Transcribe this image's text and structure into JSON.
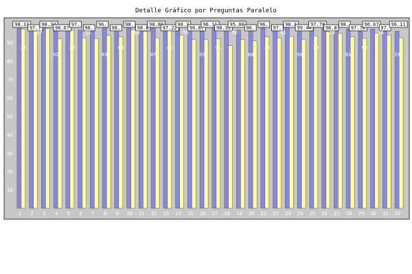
{
  "chart_data": {
    "type": "bar",
    "title": "Detalle Gráfico por Preguntas Paralelo",
    "categories": [
      "1",
      "2",
      "3",
      "4",
      "5",
      "6",
      "7",
      "8",
      "9",
      "10",
      "11",
      "12",
      "13",
      "14",
      "15",
      "16",
      "17",
      "18",
      "19",
      "20",
      "21",
      "22",
      "23",
      "24",
      "25",
      "26",
      "27",
      "28",
      "29",
      "30",
      "31",
      "32"
    ],
    "ylim": [
      0,
      100
    ],
    "yticks": [
      10,
      20,
      30,
      40,
      50,
      60,
      70,
      80,
      90
    ],
    "series": [
      {
        "color": "#8888e0",
        "values": [
          98.33,
          97.78,
          98.33,
          96.11,
          97.78,
          96.67,
          96.67,
          98.33,
          98.89,
          98.89,
          98.89,
          97.78,
          98.33,
          98.33,
          96.67,
          96.11,
          98.33,
          97.22,
          96.67,
          96.67,
          97.78,
          98.33,
          99.44,
          97.78,
          98.89,
          98.89,
          97.78,
          97.22,
          97.78,
          97.22,
          96.11,
          96.11
        ]
      },
      {
        "color": "#ffffa0",
        "values": [
          97.22,
          97.0,
          97.5,
          92.0,
          96.67,
          92.5,
          92.11,
          93.8,
          93.03,
          97.0,
          96.07,
          92.5,
          97.22,
          94.0,
          91.5,
          91.5,
          92.0,
          88.19,
          91.5,
          90.79,
          93.0,
          92.5,
          93.19,
          91.5,
          93.51,
          95.83,
          95.0,
          93.0,
          92.24,
          95.0,
          94.0,
          92.5
        ]
      }
    ],
    "data_labels": [
      "98.33",
      "97.7",
      "98.33",
      "96.67",
      "97.",
      "96.",
      "96.",
      "98.",
      "98.",
      "98.8",
      "98.89",
      "97.22",
      "98.3",
      "96.67",
      "96.11",
      "98.33",
      "95.00",
      "96.",
      "96.",
      "97.",
      "98.3",
      "99.44",
      "97.78",
      "98.8",
      "98.",
      "97.78",
      "96.67",
      "97.",
      "96.11"
    ],
    "bar_labels": [
      "32",
      "67",
      "92",
      "32",
      "11",
      "83",
      "03",
      "80",
      "07",
      "42",
      "50",
      "92",
      "91",
      "50",
      "88",
      "19",
      "81",
      "90",
      "79",
      "19",
      "81",
      "92",
      "24",
      "19"
    ]
  },
  "colors": {
    "plot_bg": "#c8c8c8",
    "bar_outline": "#555555"
  }
}
